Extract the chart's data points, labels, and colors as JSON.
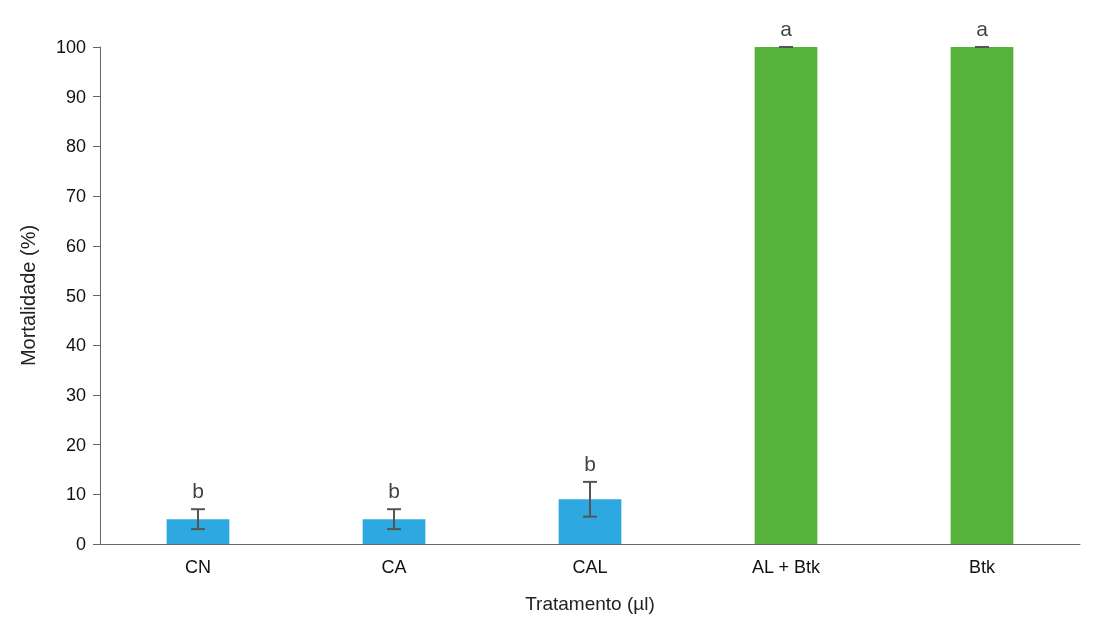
{
  "chart_data": {
    "type": "bar",
    "xlabel": "Tratamento (µl)",
    "ylabel": "Mortalidade (%)",
    "categories": [
      "CN",
      "CA",
      "CAL",
      "AL + Btk",
      "Btk"
    ],
    "values": [
      5,
      5,
      9,
      100,
      100
    ],
    "colors": [
      "#2ea8e0",
      "#2ea8e0",
      "#2ea8e0",
      "#56b23a",
      "#56b23a"
    ],
    "errors": [
      2,
      2,
      3.5,
      0,
      0
    ],
    "ylim": [
      0,
      100
    ],
    "yticks": [
      0,
      10,
      20,
      30,
      40,
      50,
      60,
      70,
      80,
      90,
      100
    ],
    "grid": false,
    "annotations": [
      {
        "text": "b",
        "x": "CN",
        "y": 7
      },
      {
        "text": "b",
        "x": "CA",
        "y": 7
      },
      {
        "text": "b",
        "x": "CAL",
        "y": 12.5
      },
      {
        "text": "a",
        "x": "AL + Btk",
        "y": 100
      },
      {
        "text": "a",
        "x": "Btk",
        "y": 100
      }
    ]
  }
}
